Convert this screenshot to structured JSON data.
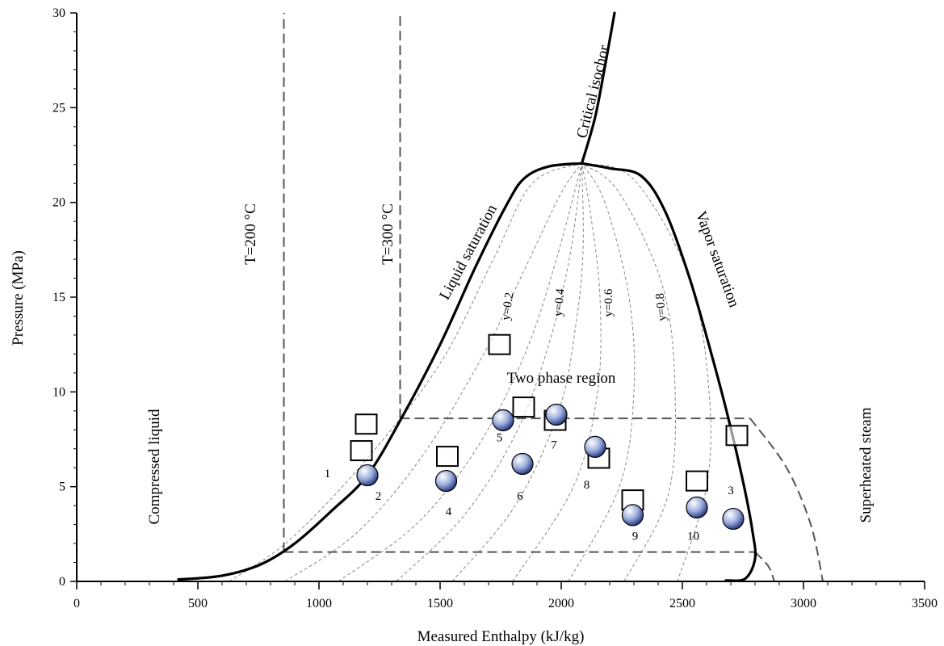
{
  "chart_data": {
    "type": "scatter",
    "xlabel": "Measured Enthalpy (kJ/kg)",
    "ylabel": "Pressure (MPa)",
    "xlim": [
      0,
      3500
    ],
    "ylim": [
      0,
      30
    ],
    "x_ticks": [
      "0",
      "500",
      "1000",
      "1500",
      "2000",
      "2500",
      "3000",
      "3500"
    ],
    "y_ticks": [
      "0",
      "5",
      "10",
      "15",
      "20",
      "25",
      "30"
    ],
    "grid": false,
    "colors": {
      "curve": "#000000",
      "dashed": "#555555",
      "quality": "#888888",
      "circle_fill": "#8fa3d6",
      "square_fill": "#ffffff"
    },
    "series": [
      {
        "name": "",
        "marker": "square",
        "points": [
          {
            "x": 1195,
            "y": 8.3
          },
          {
            "x": 1175,
            "y": 6.9
          },
          {
            "x": 1530,
            "y": 6.6
          },
          {
            "x": 1745,
            "y": 12.5
          },
          {
            "x": 1845,
            "y": 9.2
          },
          {
            "x": 1975,
            "y": 8.5
          },
          {
            "x": 2155,
            "y": 6.5
          },
          {
            "x": 2295,
            "y": 4.3
          },
          {
            "x": 2560,
            "y": 5.3
          },
          {
            "x": 2725,
            "y": 7.7
          }
        ]
      },
      {
        "name": "",
        "marker": "circle",
        "points": [
          {
            "x": 1200,
            "y": 5.6
          },
          {
            "x": 1525,
            "y": 5.3
          },
          {
            "x": 1760,
            "y": 8.5
          },
          {
            "x": 1840,
            "y": 6.2
          },
          {
            "x": 1980,
            "y": 8.8
          },
          {
            "x": 2140,
            "y": 7.1
          },
          {
            "x": 2295,
            "y": 3.5
          },
          {
            "x": 2560,
            "y": 3.9
          },
          {
            "x": 2710,
            "y": 3.3
          }
        ]
      }
    ],
    "point_labels": [
      {
        "text": "1",
        "x": 1035,
        "y": 5.5
      },
      {
        "text": "2",
        "x": 1245,
        "y": 4.3
      },
      {
        "text": "3",
        "x": 2700,
        "y": 4.6
      },
      {
        "text": "4",
        "x": 1535,
        "y": 3.5
      },
      {
        "text": "5",
        "x": 1745,
        "y": 7.4
      },
      {
        "text": "6",
        "x": 1830,
        "y": 4.3
      },
      {
        "text": "7",
        "x": 1970,
        "y": 7.0
      },
      {
        "text": "8",
        "x": 2105,
        "y": 4.9
      },
      {
        "text": "9",
        "x": 2305,
        "y": 2.2
      },
      {
        "text": "10",
        "x": 2545,
        "y": 2.2
      }
    ],
    "curves": {
      "liquid_saturation": [
        [
          420,
          0.1
        ],
        [
          600,
          0.3
        ],
        [
          760,
          0.9
        ],
        [
          900,
          2.0
        ],
        [
          1050,
          3.7
        ],
        [
          1200,
          5.6
        ],
        [
          1340,
          8.6
        ],
        [
          1500,
          12.5
        ],
        [
          1650,
          16.7
        ],
        [
          1780,
          20.0
        ],
        [
          1850,
          21.3
        ],
        [
          1950,
          21.9
        ],
        [
          2085,
          22.06
        ]
      ],
      "vapor_saturation": [
        [
          2085,
          22.06
        ],
        [
          2200,
          21.8
        ],
        [
          2330,
          21.4
        ],
        [
          2430,
          19.5
        ],
        [
          2530,
          16.0
        ],
        [
          2620,
          12.0
        ],
        [
          2690,
          8.6
        ],
        [
          2755,
          5.0
        ],
        [
          2790,
          2.6
        ],
        [
          2800,
          1.2
        ],
        [
          2760,
          0.15
        ],
        [
          2680,
          0.05
        ]
      ],
      "critical_isochor": [
        [
          2085,
          22.06
        ],
        [
          2140,
          24.5
        ],
        [
          2185,
          27.5
        ],
        [
          2220,
          30
        ]
      ],
      "isotherm_200": [
        [
          855,
          1.55
        ],
        [
          855,
          30
        ]
      ],
      "isotherm_300": [
        [
          1335,
          8.6
        ],
        [
          1335,
          30
        ]
      ],
      "isobar_upper": [
        [
          1335,
          8.6
        ],
        [
          2780,
          8.6
        ]
      ],
      "isobar_lower": [
        [
          855,
          1.55
        ],
        [
          2800,
          1.55
        ]
      ],
      "superheat_upper": [
        [
          2780,
          8.6
        ],
        [
          2930,
          6.0
        ],
        [
          3030,
          3.0
        ],
        [
          3080,
          0
        ]
      ],
      "superheat_lower": [
        [
          2800,
          1.55
        ],
        [
          2855,
          0.8
        ],
        [
          2880,
          0
        ]
      ],
      "quality_lines": [
        [
          [
            630,
            0
          ],
          [
            880,
            2.2
          ],
          [
            1200,
            6.5
          ],
          [
            1500,
            11.5
          ],
          [
            1720,
            17.0
          ],
          [
            1880,
            21.0
          ],
          [
            2085,
            22.06
          ]
        ],
        [
          [
            860,
            0
          ],
          [
            1150,
            2.5
          ],
          [
            1420,
            6.5
          ],
          [
            1680,
            12.0
          ],
          [
            1850,
            16.5
          ],
          [
            2000,
            20.5
          ],
          [
            2085,
            22.06
          ]
        ],
        [
          [
            1080,
            0
          ],
          [
            1400,
            3.0
          ],
          [
            1650,
            7.0
          ],
          [
            1850,
            12.0
          ],
          [
            1980,
            17.0
          ],
          [
            2085,
            22.06
          ]
        ],
        [
          [
            1320,
            0
          ],
          [
            1600,
            3.5
          ],
          [
            1820,
            8.0
          ],
          [
            1960,
            13.0
          ],
          [
            2040,
            17.5
          ],
          [
            2085,
            22.06
          ]
        ],
        [
          [
            1550,
            0
          ],
          [
            1810,
            4.0
          ],
          [
            1990,
            9.0
          ],
          [
            2060,
            13.5
          ],
          [
            2090,
            17.5
          ],
          [
            2085,
            22.06
          ]
        ],
        [
          [
            1800,
            0
          ],
          [
            2050,
            5.0
          ],
          [
            2150,
            10.0
          ],
          [
            2160,
            15.0
          ],
          [
            2120,
            19.5
          ],
          [
            2085,
            22.06
          ]
        ],
        [
          [
            2030,
            0
          ],
          [
            2240,
            5.0
          ],
          [
            2300,
            10.0
          ],
          [
            2280,
            15.0
          ],
          [
            2180,
            20.0
          ],
          [
            2085,
            22.06
          ]
        ],
        [
          [
            2260,
            0
          ],
          [
            2440,
            4.5
          ],
          [
            2470,
            10.0
          ],
          [
            2420,
            15.5
          ],
          [
            2240,
            20.5
          ],
          [
            2085,
            22.06
          ]
        ],
        [
          [
            2480,
            0
          ],
          [
            2600,
            5.0
          ],
          [
            2610,
            10.0
          ],
          [
            2530,
            16.0
          ],
          [
            2300,
            21.2
          ],
          [
            2085,
            22.06
          ]
        ]
      ]
    },
    "annotations": {
      "compressed_liquid": "Compressed liquid",
      "two_phase": "Two phase region",
      "superheated": "Superheated steam",
      "t200": "T=200 °C",
      "t300": "T=300 °C",
      "liquid_sat": "Liquid saturation",
      "vapor_sat": "Vapor saturation",
      "critical_isochor": "Critical isochor",
      "y02": "y=0.2",
      "y04": "y=0.4",
      "y06": "y=0.6",
      "y08": "y=0.8"
    }
  }
}
